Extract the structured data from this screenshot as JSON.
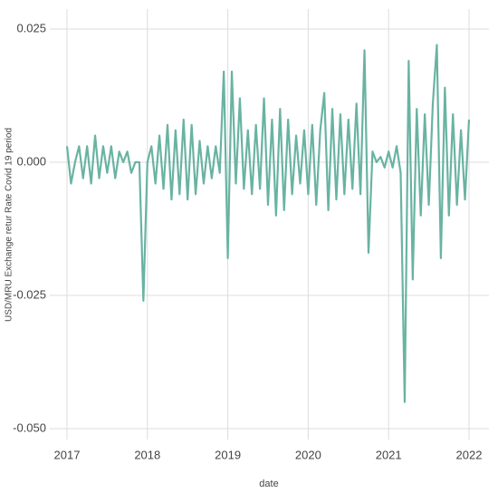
{
  "chart_data": {
    "type": "line",
    "x_label": "date",
    "y_label": "USD/MRU Exchange retur Rate Covid 19 period",
    "x": [
      2017.0,
      2017.05,
      2017.1,
      2017.15,
      2017.2,
      2017.25,
      2017.3,
      2017.35,
      2017.4,
      2017.45,
      2017.5,
      2017.55,
      2017.6,
      2017.65,
      2017.7,
      2017.75,
      2017.8,
      2017.85,
      2017.9,
      2017.95,
      2018.0,
      2018.05,
      2018.1,
      2018.15,
      2018.2,
      2018.25,
      2018.3,
      2018.35,
      2018.4,
      2018.45,
      2018.5,
      2018.55,
      2018.6,
      2018.65,
      2018.7,
      2018.75,
      2018.8,
      2018.85,
      2018.9,
      2018.95,
      2019.0,
      2019.05,
      2019.1,
      2019.15,
      2019.2,
      2019.25,
      2019.3,
      2019.35,
      2019.4,
      2019.45,
      2019.5,
      2019.55,
      2019.6,
      2019.65,
      2019.7,
      2019.75,
      2019.8,
      2019.85,
      2019.9,
      2019.95,
      2020.0,
      2020.05,
      2020.1,
      2020.15,
      2020.2,
      2020.25,
      2020.3,
      2020.35,
      2020.4,
      2020.45,
      2020.5,
      2020.55,
      2020.6,
      2020.65,
      2020.7,
      2020.75,
      2020.8,
      2020.85,
      2020.9,
      2020.95,
      2021.0,
      2021.05,
      2021.1,
      2021.15,
      2021.2,
      2021.25,
      2021.3,
      2021.35,
      2021.4,
      2021.45,
      2021.5,
      2021.55,
      2021.6,
      2021.65,
      2021.7,
      2021.75,
      2021.8,
      2021.85,
      2021.9,
      2021.95,
      2022.0
    ],
    "series": [
      {
        "color": "#69b3a2",
        "values": [
          0.003,
          -0.004,
          0.0,
          0.003,
          -0.003,
          0.003,
          -0.004,
          0.005,
          -0.003,
          0.003,
          -0.002,
          0.003,
          -0.003,
          0.002,
          0.0,
          0.002,
          -0.002,
          0.0,
          0.0,
          -0.026,
          0.0,
          0.003,
          -0.004,
          0.005,
          -0.005,
          0.007,
          -0.007,
          0.006,
          -0.006,
          0.008,
          -0.007,
          0.007,
          -0.006,
          0.004,
          -0.004,
          0.003,
          -0.003,
          0.003,
          -0.002,
          0.017,
          -0.018,
          0.017,
          -0.004,
          0.012,
          -0.005,
          0.006,
          -0.006,
          0.007,
          -0.005,
          0.012,
          -0.008,
          0.008,
          -0.01,
          0.01,
          -0.009,
          0.008,
          -0.006,
          0.005,
          -0.004,
          0.006,
          -0.006,
          0.007,
          -0.008,
          0.006,
          0.013,
          -0.009,
          0.01,
          -0.007,
          0.009,
          -0.006,
          0.008,
          -0.005,
          0.011,
          -0.006,
          0.021,
          -0.017,
          0.002,
          0.0,
          0.001,
          -0.001,
          0.002,
          -0.001,
          0.003,
          -0.002,
          -0.045,
          0.019,
          -0.022,
          0.01,
          -0.01,
          0.009,
          -0.008,
          0.011,
          0.022,
          -0.018,
          0.014,
          -0.01,
          0.009,
          -0.008,
          0.006,
          -0.007,
          0.008
        ]
      }
    ],
    "xlim": [
      2016.786,
      2022.248
    ],
    "ylim": [
      -0.05204,
      0.02874
    ],
    "xticks": [
      2017,
      2018,
      2019,
      2020,
      2021,
      2022
    ],
    "yticks": [
      0.025,
      {
        "value": 0,
        "label": "0.000"
      },
      -0.025,
      {
        "value": -0.05,
        "label": "-0.050"
      }
    ],
    "grid": true
  }
}
